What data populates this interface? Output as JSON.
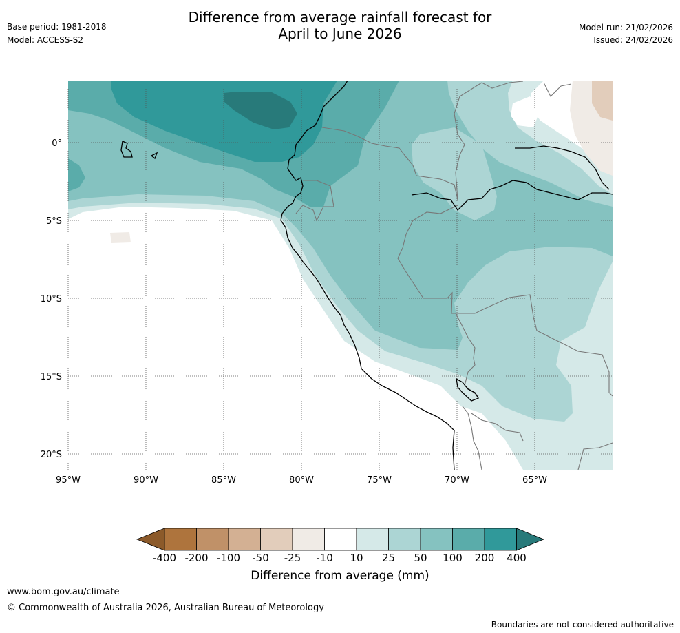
{
  "header": {
    "title_line1": "Difference from average rainfall forecast for",
    "title_line2": "April to June 2026",
    "base_period": "Base period: 1981-2018",
    "model": "Model: ACCESS-S2",
    "model_run": "Model run: 21/02/2026",
    "issued": "Issued: 24/02/2026"
  },
  "map": {
    "lat_labels": [
      "0°",
      "5°S",
      "10°S",
      "15°S",
      "20°S"
    ],
    "lon_labels": [
      "95°W",
      "90°W",
      "85°W",
      "80°W",
      "75°W",
      "70°W",
      "65°W"
    ],
    "colors": {
      "c_m400": "#8c5a2a",
      "c_m200": "#ae743d",
      "c_m100": "#c09168",
      "c_m50": "#d3b093",
      "c_m25": "#e2cdbb",
      "c_m10": "#f0ebe6",
      "c_0": "#ffffff",
      "c_10": "#d5e9e8",
      "c_25": "#acd5d4",
      "c_50": "#85c2c0",
      "c_100": "#5aacaa",
      "c_200": "#30999a",
      "c_400": "#287a7a",
      "coast": "#000000",
      "border": "#777777",
      "grid": "#555555"
    }
  },
  "colorbar": {
    "title": "Difference from average (mm)",
    "ticks": [
      "-400",
      "-200",
      "-100",
      "-50",
      "-25",
      "-10",
      "10",
      "25",
      "50",
      "100",
      "200",
      "400"
    ]
  },
  "footer": {
    "url": "www.bom.gov.au/climate",
    "copyright": "© Commonwealth of Australia 2026, Australian Bureau of Meteorology",
    "disclaimer": "Boundaries are not considered authoritative"
  }
}
